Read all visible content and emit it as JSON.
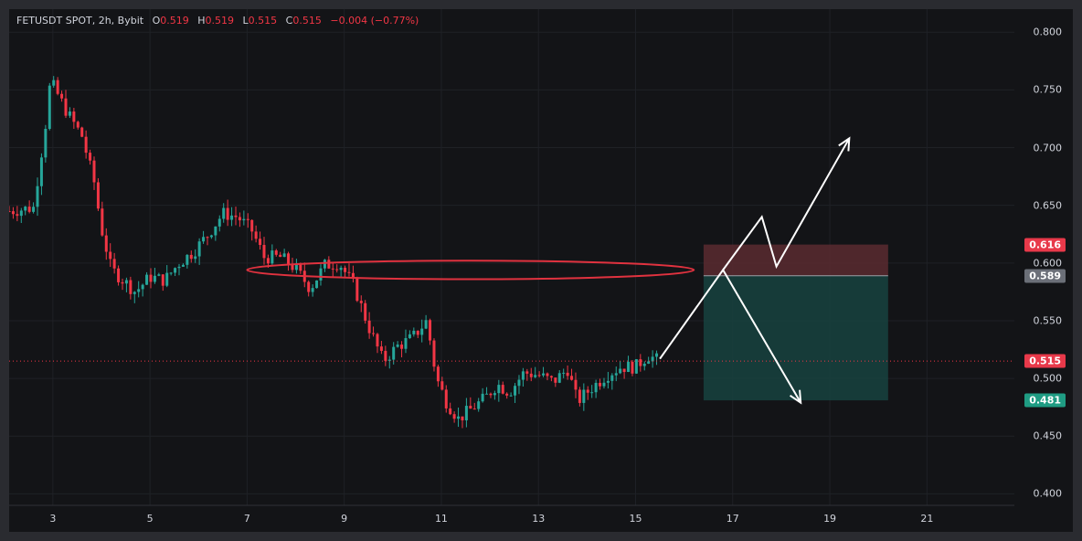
{
  "legend": {
    "symbol": "FETUSDT SPOT, 2h, Bybit",
    "o_label": "O",
    "o_value": "0.519",
    "h_label": "H",
    "h_value": "0.519",
    "l_label": "L",
    "l_value": "0.515",
    "c_label": "C",
    "c_value": "0.515",
    "change": "−0.004 (−0.77%)"
  },
  "colors": {
    "background": "#131417",
    "up": "#26a69a",
    "down": "#f23645",
    "grid": "#1f2126",
    "annotation": "#ffffff",
    "ellipse": "#e0323f",
    "stop_zone": "#5a2a30",
    "target_zone": "#17423f"
  },
  "price_tags": {
    "stop": "0.616",
    "entry": "0.589",
    "current": "0.515",
    "target": "0.481"
  },
  "chart_data": {
    "type": "candlestick",
    "title": "FETUSDT SPOT, 2h, Bybit",
    "xlabel": "",
    "ylabel": "",
    "yticks": [
      "0.800",
      "0.750",
      "0.700",
      "0.650",
      "0.600",
      "0.550",
      "0.500",
      "0.450",
      "0.400"
    ],
    "ylim": [
      0.39,
      0.82
    ],
    "xticks": [
      "3",
      "5",
      "7",
      "9",
      "11",
      "13",
      "15",
      "17",
      "19",
      "21"
    ],
    "xlim": [
      2.1,
      22.8
    ],
    "grid": true,
    "current_price": 0.515,
    "position": {
      "entry": 0.589,
      "stop": 0.616,
      "target": 0.481,
      "start_day": 16.4,
      "end_day": 20.2
    },
    "ellipse": {
      "center_day": 11.6,
      "center_price": 0.594,
      "width_days": 9.2,
      "height_price": 0.016
    },
    "arrows": [
      {
        "points": [
          [
            15.5,
            0.517
          ],
          [
            16.8,
            0.594
          ],
          [
            18.4,
            0.479
          ]
        ]
      },
      {
        "points": [
          [
            16.8,
            0.594
          ],
          [
            17.6,
            0.64
          ],
          [
            17.9,
            0.597
          ],
          [
            19.4,
            0.708
          ]
        ]
      }
    ],
    "path": [
      [
        2.1,
        0.645
      ],
      [
        2.6,
        0.648
      ],
      [
        2.85,
        0.72
      ],
      [
        2.95,
        0.758
      ],
      [
        3.3,
        0.73
      ],
      [
        3.6,
        0.71
      ],
      [
        3.85,
        0.67
      ],
      [
        4.0,
        0.63
      ],
      [
        4.2,
        0.595
      ],
      [
        4.45,
        0.585
      ],
      [
        4.7,
        0.575
      ],
      [
        5.0,
        0.588
      ],
      [
        5.3,
        0.585
      ],
      [
        5.6,
        0.6
      ],
      [
        5.9,
        0.61
      ],
      [
        6.2,
        0.625
      ],
      [
        6.5,
        0.643
      ],
      [
        6.8,
        0.64
      ],
      [
        7.1,
        0.628
      ],
      [
        7.35,
        0.605
      ],
      [
        7.7,
        0.605
      ],
      [
        8.0,
        0.595
      ],
      [
        8.3,
        0.578
      ],
      [
        8.6,
        0.598
      ],
      [
        8.9,
        0.6
      ],
      [
        9.2,
        0.58
      ],
      [
        9.5,
        0.545
      ],
      [
        9.8,
        0.515
      ],
      [
        10.1,
        0.528
      ],
      [
        10.4,
        0.535
      ],
      [
        10.7,
        0.55
      ],
      [
        10.9,
        0.5
      ],
      [
        11.1,
        0.48
      ],
      [
        11.35,
        0.465
      ],
      [
        11.6,
        0.473
      ],
      [
        11.9,
        0.483
      ],
      [
        12.15,
        0.495
      ],
      [
        12.4,
        0.488
      ],
      [
        12.7,
        0.505
      ],
      [
        13.0,
        0.503
      ],
      [
        13.3,
        0.497
      ],
      [
        13.6,
        0.508
      ],
      [
        13.8,
        0.48
      ],
      [
        14.1,
        0.492
      ],
      [
        14.4,
        0.503
      ],
      [
        14.7,
        0.51
      ],
      [
        15.0,
        0.51
      ],
      [
        15.25,
        0.52
      ],
      [
        15.5,
        0.515
      ]
    ]
  }
}
